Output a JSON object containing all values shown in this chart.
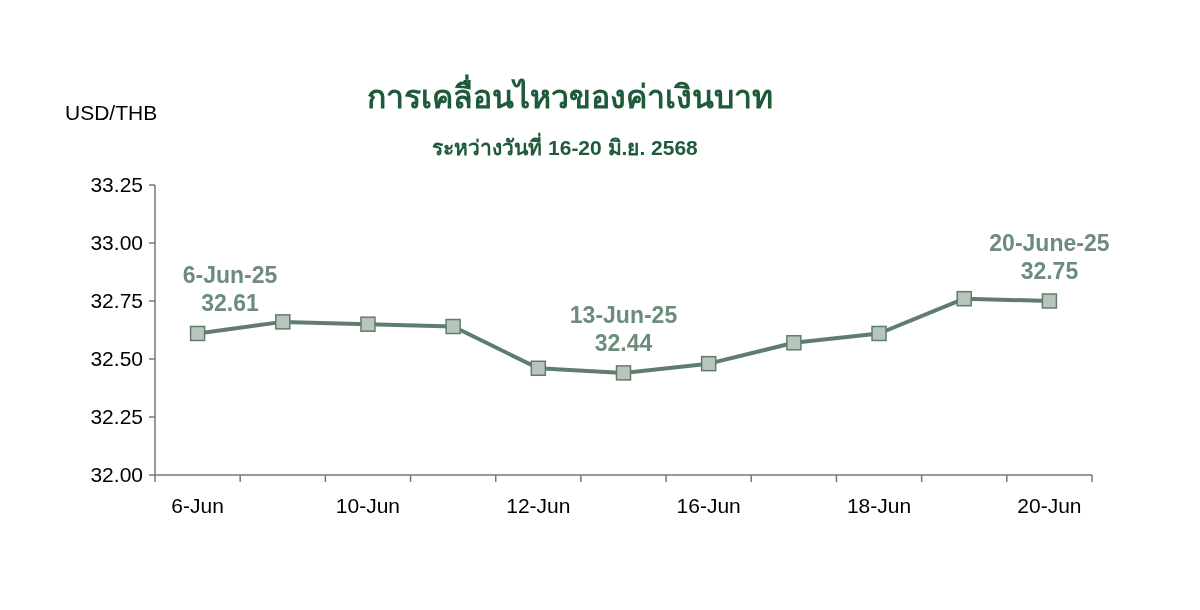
{
  "chart_data": {
    "type": "line",
    "title": "การเคลื่อนไหวของค่าเงินบาท",
    "subtitle": "ระหว่างวันที่ 16-20 มิ.ย. 2568",
    "ylabel": "USD/THB",
    "categories": [
      "6-Jun",
      null,
      "10-Jun",
      null,
      "12-Jun",
      null,
      "16-Jun",
      null,
      "18-Jun",
      null,
      "20-Jun"
    ],
    "series": [
      {
        "color": "#5f7d6c",
        "values": [
          32.61,
          32.66,
          32.65,
          32.64,
          32.46,
          32.44,
          32.48,
          32.57,
          32.61,
          32.76,
          32.75
        ]
      }
    ],
    "marker": "square",
    "line_style": "solid",
    "ylim": [
      32.0,
      33.25
    ],
    "yticks": [
      {
        "value": 32.0,
        "label": "32.00"
      },
      {
        "value": 32.25,
        "label": "32.25"
      },
      {
        "value": 32.5,
        "label": "32.50"
      },
      {
        "value": 32.75,
        "label": "32.75"
      },
      {
        "value": 33.0,
        "label": "33.00"
      },
      {
        "value": 33.25,
        "label": "33.25"
      }
    ],
    "annotations": [
      {
        "text": "6-Jun-25\n32.61",
        "x": "6-Jun",
        "y": 32.61
      },
      {
        "text": "13-Jun-25\n32.44",
        "y": 32.44
      },
      {
        "text": "20-June-25\n32.75",
        "x": "20-Jun",
        "y": 32.75
      }
    ]
  }
}
